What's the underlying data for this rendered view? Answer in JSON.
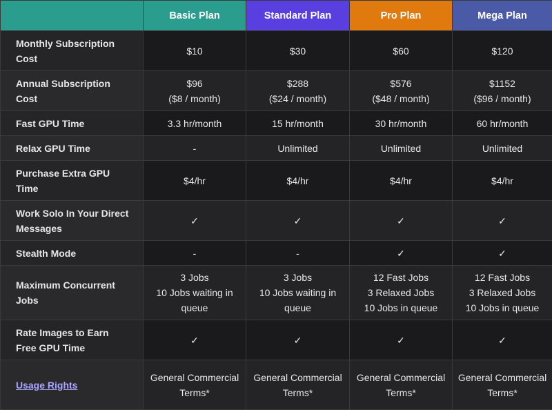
{
  "header": {
    "corner": "",
    "plans": [
      "Basic Plan",
      "Standard Plan",
      "Pro Plan",
      "Mega Plan"
    ]
  },
  "colors": {
    "basic": "#2a9d8f",
    "standard": "#5a3fe0",
    "pro": "#e07a0f",
    "mega": "#4b5aa6",
    "link": "#a9a6ff"
  },
  "rows": [
    {
      "label": "Monthly Subscription Cost",
      "values": [
        [
          "$10"
        ],
        [
          "$30"
        ],
        [
          "$60"
        ],
        [
          "$120"
        ]
      ]
    },
    {
      "label": "Annual Subscription Cost",
      "values": [
        [
          "$96",
          "($8 / month)"
        ],
        [
          "$288",
          "($24 / month)"
        ],
        [
          "$576",
          "($48 / month)"
        ],
        [
          "$1152",
          "($96 / month)"
        ]
      ]
    },
    {
      "label": "Fast GPU Time",
      "values": [
        [
          "3.3 hr/month"
        ],
        [
          "15 hr/month"
        ],
        [
          "30 hr/month"
        ],
        [
          "60 hr/month"
        ]
      ]
    },
    {
      "label": "Relax GPU Time",
      "values": [
        [
          "-"
        ],
        [
          "Unlimited"
        ],
        [
          "Unlimited"
        ],
        [
          "Unlimited"
        ]
      ]
    },
    {
      "label": "Purchase Extra GPU Time",
      "values": [
        [
          "$4/hr"
        ],
        [
          "$4/hr"
        ],
        [
          "$4/hr"
        ],
        [
          "$4/hr"
        ]
      ]
    },
    {
      "label": "Work Solo In Your Direct Messages",
      "values": [
        [
          "✓"
        ],
        [
          "✓"
        ],
        [
          "✓"
        ],
        [
          "✓"
        ]
      ]
    },
    {
      "label": "Stealth Mode",
      "values": [
        [
          "-"
        ],
        [
          "-"
        ],
        [
          "✓"
        ],
        [
          "✓"
        ]
      ]
    },
    {
      "label": "Maximum Concurrent Jobs",
      "values": [
        [
          "3 Jobs",
          "10 Jobs waiting in queue"
        ],
        [
          "3 Jobs",
          "10 Jobs waiting in queue"
        ],
        [
          "12 Fast Jobs",
          "3 Relaxed Jobs",
          "10 Jobs in queue"
        ],
        [
          "12 Fast Jobs",
          "3 Relaxed Jobs",
          "10 Jobs in queue"
        ]
      ]
    },
    {
      "label": "Rate Images to Earn Free GPU Time",
      "values": [
        [
          "✓"
        ],
        [
          "✓"
        ],
        [
          "✓"
        ],
        [
          "✓"
        ]
      ]
    },
    {
      "label": "Usage Rights",
      "label_is_link": true,
      "values": [
        [
          "General Commercial Terms*"
        ],
        [
          "General Commercial Terms*"
        ],
        [
          "General Commercial Terms*"
        ],
        [
          "General Commercial Terms*"
        ]
      ]
    }
  ]
}
